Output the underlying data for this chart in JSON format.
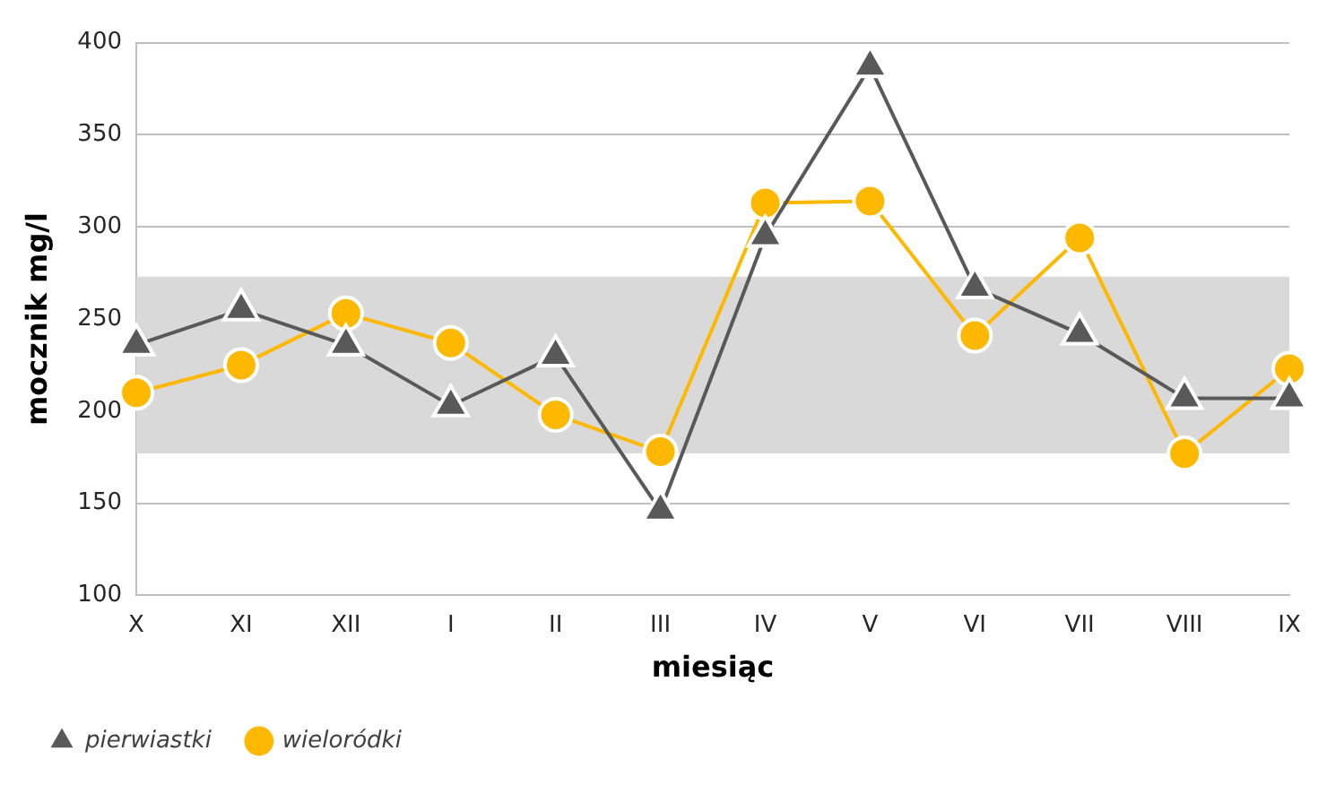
{
  "chart_data": {
    "type": "line",
    "xlabel": "miesiąc",
    "ylabel": "mocznik mg/l",
    "categories": [
      "X",
      "XI",
      "XII",
      "I",
      "II",
      "III",
      "IV",
      "V",
      "VI",
      "VII",
      "VIII",
      "IX"
    ],
    "series": [
      {
        "name": "pierwiastki",
        "color": "#595959",
        "marker": "triangle",
        "values": [
          236,
          255,
          236,
          203,
          230,
          146,
          295,
          387,
          267,
          242,
          207,
          207
        ]
      },
      {
        "name": "wieloródki",
        "color": "#ffb800",
        "marker": "circle",
        "values": [
          210,
          225,
          253,
          237,
          198,
          178,
          313,
          314,
          241,
          294,
          177,
          223
        ]
      }
    ],
    "ylim": [
      100,
      400
    ],
    "yticks": [
      100,
      150,
      200,
      250,
      300,
      350,
      400
    ],
    "grid": "y",
    "legend": "bottom left",
    "bands": [
      {
        "axis": "y",
        "from": 177,
        "to": 273,
        "color": "#d9d9d9"
      }
    ]
  }
}
